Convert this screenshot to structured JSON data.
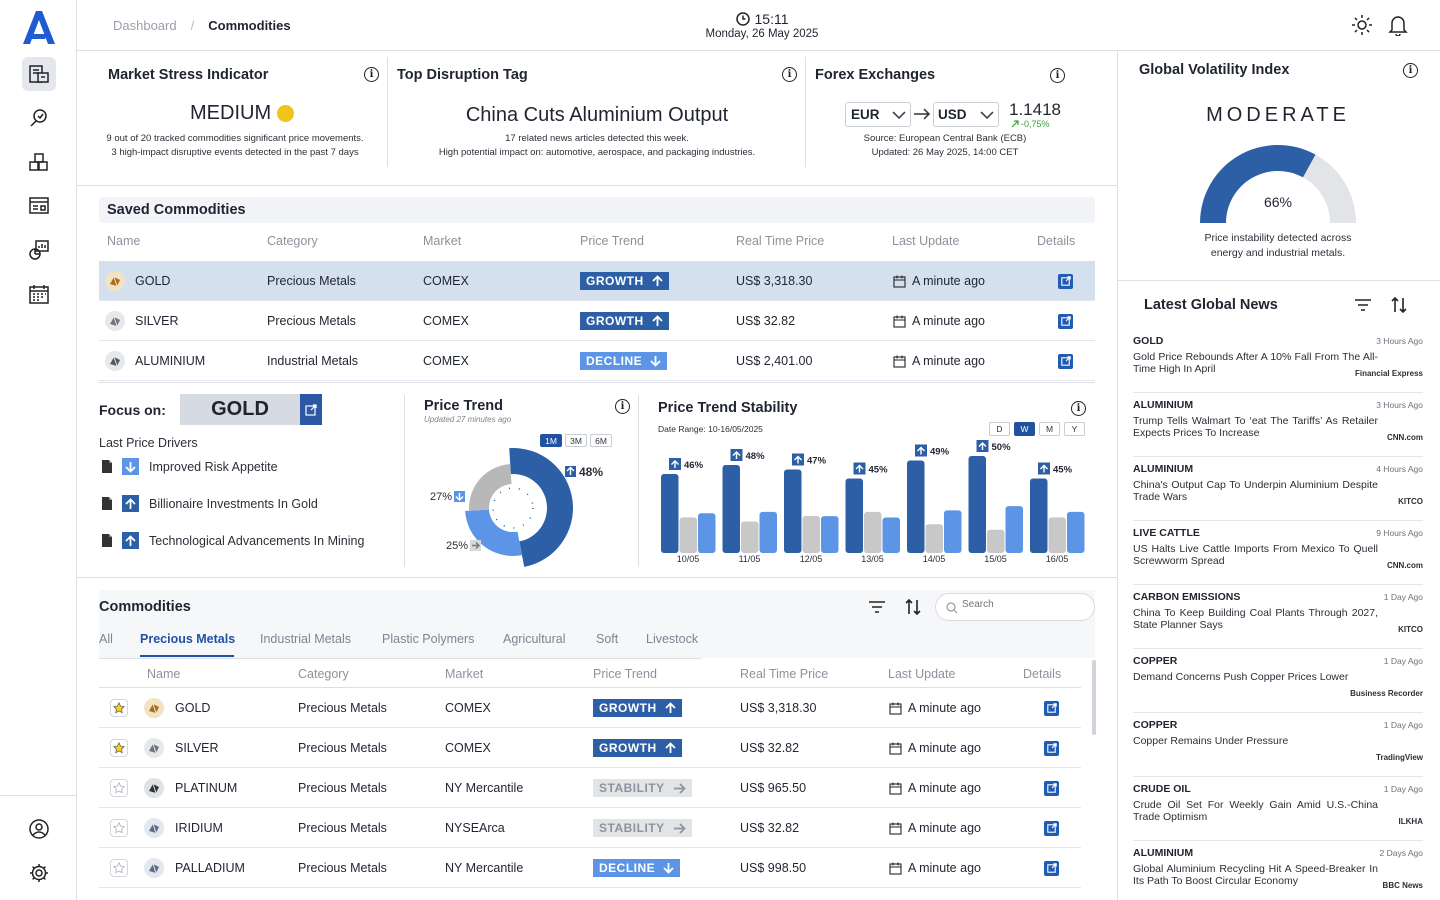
{
  "header": {
    "breadcrumb": [
      "Dashboard",
      "Commodities"
    ],
    "time": "15:11",
    "date": "Monday, 26 May 2025"
  },
  "market_stress": {
    "title": "Market Stress Indicator",
    "level": "MEDIUM",
    "note1": "9 out of 20 tracked commodities significant price movements.",
    "note2": "3 high-impact disruptive events detected in the past 7 days"
  },
  "disruption": {
    "title": "Top Disruption Tag",
    "headline": "China Cuts Aluminium Output",
    "note1": "17 related news articles detected this week.",
    "note2": "High potential impact on: automotive, aerospace, and packaging industries."
  },
  "forex": {
    "title": "Forex Exchanges",
    "from": "EUR",
    "to": "USD",
    "rate": "1.1418",
    "change": "-0,75%",
    "source": "Source: European Central Bank (ECB)",
    "updated": "Updated: 26 May 2025, 14:00 CET"
  },
  "volatility": {
    "title": "Global Volatility Index",
    "level": "MODERATE",
    "percent": "66%",
    "fraction": 0.66,
    "note1": "Price instability detected across",
    "note2": "energy and industrial metals."
  },
  "saved": {
    "title": "Saved Commodities",
    "columns": [
      "Name",
      "Category",
      "Market",
      "Price Trend",
      "Real Time Price",
      "Last Update",
      "Details"
    ],
    "rows": [
      {
        "name": "GOLD",
        "category": "Precious Metals",
        "market": "COMEX",
        "trend": "GROWTH",
        "price": "US$ 3,318.30",
        "update": "A minute ago"
      },
      {
        "name": "SILVER",
        "category": "Precious Metals",
        "market": "COMEX",
        "trend": "GROWTH",
        "price": "US$ 32.82",
        "update": "A minute ago"
      },
      {
        "name": "ALUMINIUM",
        "category": "Industrial Metals",
        "market": "COMEX",
        "trend": "DECLINE",
        "price": "US$ 2,401.00",
        "update": "A minute ago"
      }
    ]
  },
  "focus": {
    "label": "Focus on:",
    "commodity": "GOLD",
    "drivers_title": "Last Price Drivers",
    "drivers": [
      "Improved Risk Appetite",
      "Billionaire Investments In Gold",
      "Technological Advancements In Mining"
    ]
  },
  "price_trend": {
    "title": "Price Trend",
    "updated": "Updated 27 minutes ago",
    "ranges": [
      "1M",
      "3M",
      "6M"
    ],
    "chart_data": {
      "type": "pie",
      "slices": [
        {
          "label": "48%",
          "value": 48,
          "direction": "up"
        },
        {
          "label": "27%",
          "value": 27,
          "direction": "down"
        },
        {
          "label": "25%",
          "value": 25,
          "direction": "stable"
        }
      ]
    }
  },
  "stability": {
    "title": "Price Trend Stability",
    "date_range": "Date Range: 10-16/05/2025",
    "periods": [
      "D",
      "W",
      "M",
      "Y"
    ],
    "chart_data": {
      "type": "bar",
      "categories": [
        "10/05",
        "11/05",
        "12/05",
        "13/05",
        "14/05",
        "15/05",
        "16/05"
      ],
      "growth_labels": [
        "46%",
        "48%",
        "47%",
        "45%",
        "49%",
        "50%",
        "45%"
      ],
      "series": [
        {
          "values": [
            46,
            48,
            47,
            45,
            49,
            50,
            45
          ],
          "color": "#2d5fa6"
        },
        {
          "values": [
            26,
            23,
            27,
            30,
            21,
            17,
            26
          ],
          "color": "#c8c8c8"
        },
        {
          "values": [
            28,
            29,
            26,
            25,
            30,
            33,
            29
          ],
          "color": "#5d95e6"
        }
      ],
      "ylim": [
        0,
        55
      ]
    }
  },
  "commodities": {
    "title": "Commodities",
    "search_placeholder": "Search",
    "tabs": [
      "All",
      "Precious Metals",
      "Industrial Metals",
      "Plastic Polymers",
      "Agricultural",
      "Soft",
      "Livestock"
    ],
    "columns": [
      "Name",
      "Category",
      "Market",
      "Price Trend",
      "Real Time Price",
      "Last Update",
      "Details"
    ],
    "rows": [
      {
        "name": "GOLD",
        "category": "Precious Metals",
        "market": "COMEX",
        "trend": "GROWTH",
        "price": "US$ 3,318.30",
        "update": "A minute ago",
        "starred": true
      },
      {
        "name": "SILVER",
        "category": "Precious Metals",
        "market": "COMEX",
        "trend": "GROWTH",
        "price": "US$ 32.82",
        "update": "A minute ago",
        "starred": true
      },
      {
        "name": "PLATINUM",
        "category": "Precious Metals",
        "market": "NY Mercantile",
        "trend": "STABILITY",
        "price": "US$ 965.50",
        "update": "A minute ago",
        "starred": false
      },
      {
        "name": "IRIDIUM",
        "category": "Precious Metals",
        "market": "NYSEArca",
        "trend": "STABILITY",
        "price": "US$ 32.82",
        "update": "A minute ago",
        "starred": false
      },
      {
        "name": "PALLADIUM",
        "category": "Precious Metals",
        "market": "NY Mercantile",
        "trend": "DECLINE",
        "price": "US$ 998.50",
        "update": "A minute ago",
        "starred": false
      }
    ]
  },
  "news": {
    "title": "Latest Global News",
    "items": [
      {
        "cat": "GOLD",
        "time": "3 Hours Ago",
        "title": "Gold Price Rebounds After A 10% Fall From The All-Time High In April",
        "source": "Financial Express"
      },
      {
        "cat": "ALUMINIUM",
        "time": "3 Hours Ago",
        "title": "Trump Tells Walmart To ‘eat The Tariffs’ As Retailer Expects Prices To Increase",
        "source": "CNN.com"
      },
      {
        "cat": "ALUMINIUM",
        "time": "4 Hours Ago",
        "title": "China's Output Cap To Underpin Aluminium Despite Trade Wars",
        "source": "KITCO"
      },
      {
        "cat": "LIVE CATTLE",
        "time": "9 Hours Ago",
        "title": "US Halts Live Cattle Imports From Mexico To Quell Screwworm Spread",
        "source": "CNN.com"
      },
      {
        "cat": "CARBON EMISSIONS",
        "time": "1 Day Ago",
        "title": "China To Keep Building Coal Plants Through 2027, State Planner Says",
        "source": "KITCO"
      },
      {
        "cat": "COPPER",
        "time": "1 Day Ago",
        "title": "Demand Concerns Push Copper Prices Lower",
        "source": "Business Recorder"
      },
      {
        "cat": "COPPER",
        "time": "1 Day Ago",
        "title": "Copper Remains Under Pressure",
        "source": "TradingView"
      },
      {
        "cat": "CRUDE OIL",
        "time": "1 Day Ago",
        "title": "Crude Oil Set For Weekly Gain Amid U.S.-China Trade Optimism",
        "source": "ILKHA"
      },
      {
        "cat": "ALUMINIUM",
        "time": "2 Days Ago",
        "title": "Global Aluminium Recycling Hit A Speed-Breaker In Its Path To Boost Circular Economy",
        "source": "BBC News"
      }
    ]
  }
}
